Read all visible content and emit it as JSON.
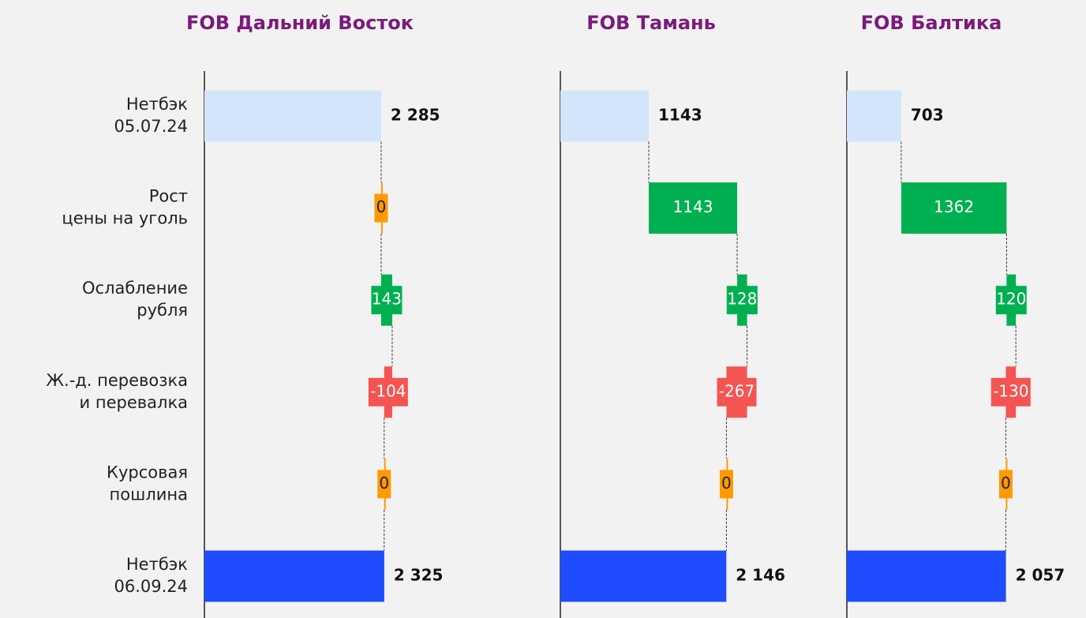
{
  "chart_data": [
    {
      "type": "waterfall",
      "title": "FOB Дальний Восток",
      "categories": [
        "Нетбэк\n05.07.24",
        "Рост\nцены на уголь",
        "Ослабление\nрубля",
        "Ж.-д. перевозка\nи перевалка",
        "Курсовая\nпошлина",
        "Нетбэк\n06.09.24"
      ],
      "values": [
        2285,
        0,
        143,
        -104,
        0,
        2325
      ],
      "value_labels": [
        "2 285",
        "0",
        "143",
        "-104",
        "0",
        "2 325"
      ],
      "colors": {
        "base": "#d3e5fb",
        "total": "#1f4cff",
        "up": "#00b050",
        "down": "#f45552",
        "zero": "#ff9900"
      }
    },
    {
      "type": "waterfall",
      "title": "FOB Тамань",
      "values": [
        1143,
        1143,
        128,
        -267,
        0,
        2146
      ],
      "value_labels": [
        "1143",
        "1143",
        "128",
        "-267",
        "0",
        "2 146"
      ],
      "colors": {
        "base": "#d3e5fb",
        "total": "#1f4cff",
        "up": "#00b050",
        "down": "#f45552",
        "zero": "#ff9900"
      }
    },
    {
      "type": "waterfall",
      "title": "FOB Балтика",
      "values": [
        703,
        1362,
        120,
        -130,
        0,
        2057
      ],
      "value_labels": [
        "703",
        "1362",
        "120",
        "-130",
        "0",
        "2 057"
      ],
      "colors": {
        "base": "#d3e5fb",
        "total": "#1f4cff",
        "up": "#00b050",
        "down": "#f45552",
        "zero": "#ff9900"
      }
    }
  ]
}
